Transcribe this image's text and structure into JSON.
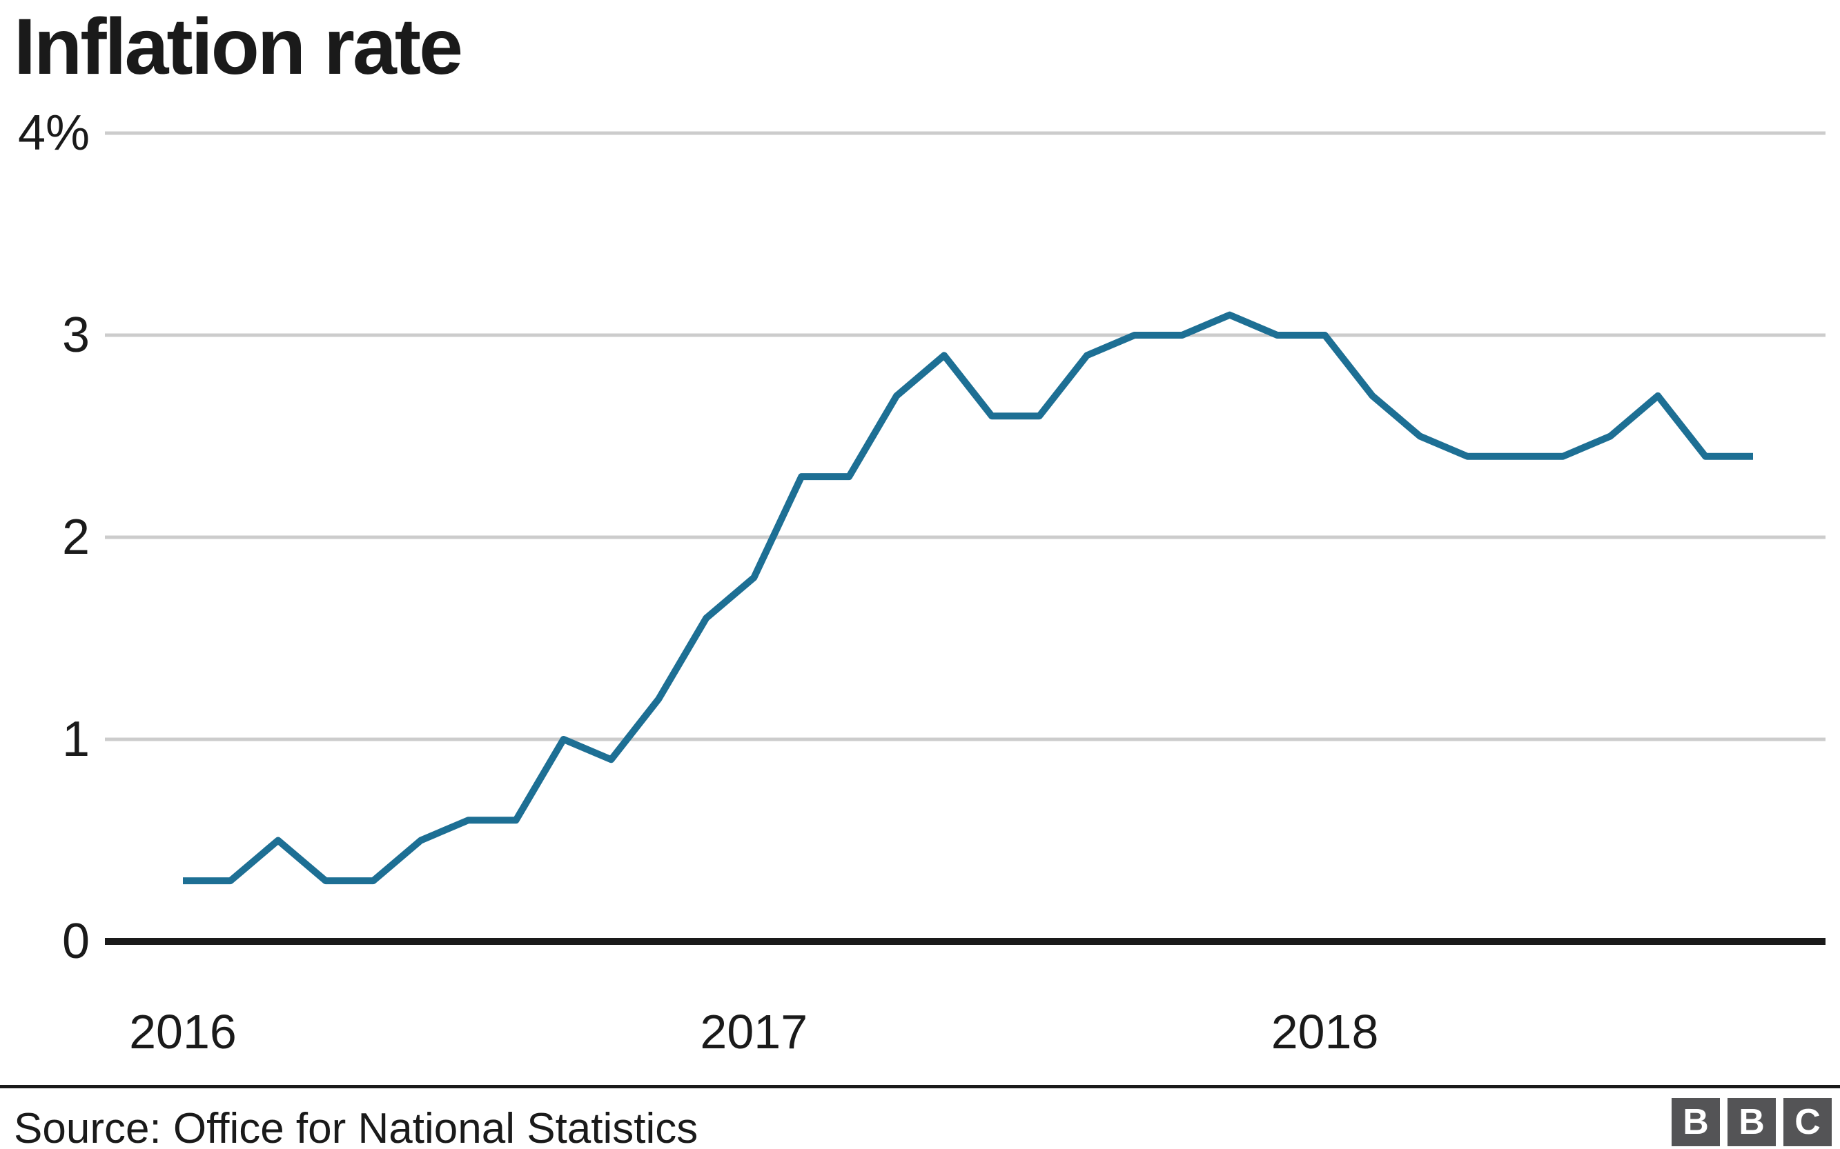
{
  "header": {
    "title": "Inflation rate"
  },
  "chart_data": {
    "type": "line",
    "title": "Inflation rate",
    "unit": "%",
    "x": [
      "2016-01",
      "2016-02",
      "2016-03",
      "2016-04",
      "2016-05",
      "2016-06",
      "2016-07",
      "2016-08",
      "2016-09",
      "2016-10",
      "2016-11",
      "2016-12",
      "2017-01",
      "2017-02",
      "2017-03",
      "2017-04",
      "2017-05",
      "2017-06",
      "2017-07",
      "2017-08",
      "2017-09",
      "2017-10",
      "2017-11",
      "2017-12",
      "2018-01",
      "2018-02",
      "2018-03",
      "2018-04",
      "2018-05",
      "2018-06",
      "2018-07",
      "2018-08",
      "2018-09",
      "2018-10"
    ],
    "values": [
      0.3,
      0.3,
      0.5,
      0.3,
      0.3,
      0.5,
      0.6,
      0.6,
      1.0,
      0.9,
      1.2,
      1.6,
      1.8,
      2.3,
      2.3,
      2.7,
      2.9,
      2.6,
      2.6,
      2.9,
      3.0,
      3.0,
      3.1,
      3.0,
      3.0,
      2.7,
      2.5,
      2.4,
      2.4,
      2.4,
      2.5,
      2.7,
      2.4,
      2.4
    ],
    "ylim": [
      0,
      4
    ],
    "yticks": [
      {
        "value": 0,
        "label": "0"
      },
      {
        "value": 1,
        "label": "1"
      },
      {
        "value": 2,
        "label": "2"
      },
      {
        "value": 3,
        "label": "3"
      },
      {
        "value": 4,
        "label": "4%"
      }
    ],
    "xticks": [
      {
        "month_index": 0,
        "label": "2016"
      },
      {
        "month_index": 12,
        "label": "2017"
      },
      {
        "month_index": 24,
        "label": "2018"
      }
    ],
    "grid": true,
    "legend": "none"
  },
  "footer": {
    "source": "Source: Office for National Statistics",
    "logo": {
      "name": "BBC",
      "letters": [
        "B",
        "B",
        "C"
      ]
    }
  },
  "colors": {
    "background": "#ffffff",
    "title": "#1a1a1a",
    "tick_label": "#1a1a1a",
    "gridline": "#cccccc",
    "axis": "#1a1a1a",
    "line": "#1d6f94",
    "logo_square": "#545456",
    "logo_letter": "#ffffff"
  }
}
